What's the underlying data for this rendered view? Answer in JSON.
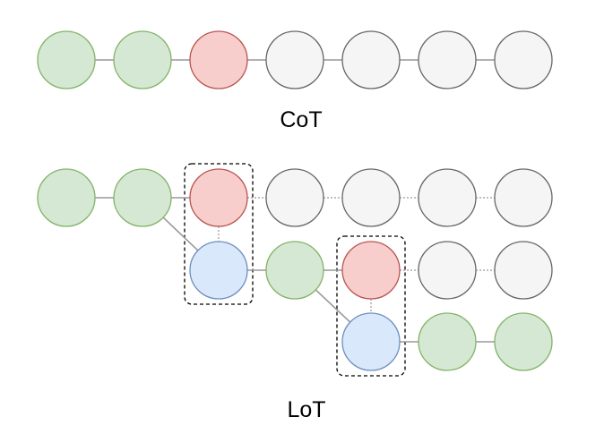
{
  "colors": {
    "green_fill": "#d5e8d4",
    "green_stroke": "#82b366",
    "red_fill": "#f8cecc",
    "red_stroke": "#b85450",
    "gray_fill": "#f5f5f5",
    "gray_stroke": "#666666",
    "blue_fill": "#dae8fc",
    "blue_stroke": "#6c8ebf",
    "edge": "#999999"
  },
  "cot": {
    "label": "CoT",
    "nodes": [
      "green",
      "green",
      "red",
      "gray",
      "gray",
      "gray",
      "gray"
    ]
  },
  "lot": {
    "label": "LoT",
    "rows": [
      {
        "start_col": 0,
        "nodes": [
          "green",
          "green",
          "red",
          "gray",
          "gray",
          "gray",
          "gray"
        ]
      },
      {
        "start_col": 2,
        "nodes": [
          "blue",
          "green",
          "red",
          "gray",
          "gray"
        ]
      },
      {
        "start_col": 4,
        "nodes": [
          "blue",
          "green",
          "green"
        ]
      }
    ]
  }
}
